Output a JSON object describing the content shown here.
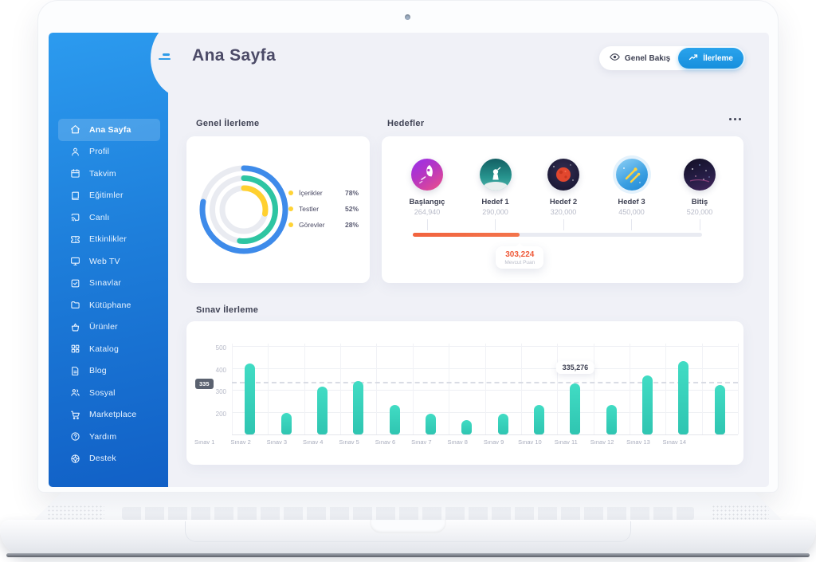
{
  "header": {
    "title": "Ana Sayfa"
  },
  "topbar": {
    "overview": "Genel Bakış",
    "progress": "İlerleme"
  },
  "sidebar": {
    "items": [
      {
        "icon": "home",
        "label": "Ana Sayfa",
        "active": true
      },
      {
        "icon": "user",
        "label": "Profil"
      },
      {
        "icon": "calendar",
        "label": "Takvim"
      },
      {
        "icon": "book",
        "label": "Eğitimler"
      },
      {
        "icon": "cast",
        "label": "Canlı"
      },
      {
        "icon": "ticket",
        "label": "Etkinlikler"
      },
      {
        "icon": "tv",
        "label": "Web TV"
      },
      {
        "icon": "check-square",
        "label": "Sınavlar"
      },
      {
        "icon": "folder",
        "label": "Kütüphane"
      },
      {
        "icon": "basket",
        "label": "Ürünler"
      },
      {
        "icon": "grid",
        "label": "Katalog"
      },
      {
        "icon": "file",
        "label": "Blog"
      },
      {
        "icon": "users",
        "label": "Sosyal"
      },
      {
        "icon": "cart",
        "label": "Marketplace"
      },
      {
        "icon": "help",
        "label": "Yardım"
      },
      {
        "icon": "support",
        "label": "Destek"
      }
    ]
  },
  "sections": {
    "general": "Genel İlerleme",
    "goals": "Hedefler",
    "exam": "Sınav İlerleme"
  },
  "goals": {
    "milestones": [
      {
        "label": "Başlangıç",
        "value": "264,940",
        "art": "rocket"
      },
      {
        "label": "Hedef 1",
        "value": "290,000",
        "art": "astronaut"
      },
      {
        "label": "Hedef 2",
        "value": "320,000",
        "art": "red-planet"
      },
      {
        "label": "Hedef 3",
        "value": "450,000",
        "art": "comets"
      },
      {
        "label": "Bitiş",
        "value": "520,000",
        "art": "night-sky"
      }
    ],
    "progress_percent": 37,
    "tooltip": {
      "value": "303,224",
      "caption": "Mevcut Puan"
    }
  },
  "chart_data": [
    {
      "type": "donut",
      "title": "Genel İlerleme",
      "series": [
        {
          "name": "İçerikler",
          "value": 78,
          "color": "#3E8BEA"
        },
        {
          "name": "Testler",
          "value": 52,
          "color": "#2EC5A2"
        },
        {
          "name": "Görevler",
          "value": 28,
          "color": "#FFD02F"
        }
      ],
      "legend_dot_color": "#FFD335",
      "legend_position": "right"
    },
    {
      "type": "bar",
      "title": "Sınav İlerleme",
      "categories": [
        "Sınav 1",
        "Sınav 2",
        "Sınav 3",
        "Sınav 4",
        "Sınav 5",
        "Sınav 6",
        "Sınav 7",
        "Sınav 8",
        "Sınav 9",
        "Sınav 10",
        "Sınav 11",
        "Sınav 12",
        "Sınav 13",
        "Sınav 14"
      ],
      "values": [
        425,
        200,
        320,
        345,
        235,
        195,
        165,
        195,
        235,
        335,
        235,
        370,
        435,
        325
      ],
      "ylim": [
        100,
        520
      ],
      "yticks": [
        200,
        300,
        400,
        500
      ],
      "marker_line": 335,
      "marker_label": "335",
      "annotation": {
        "index": 9,
        "label": "335,276"
      },
      "bar_color": "#38CDB7",
      "grid": true,
      "legend_position": "none"
    }
  ],
  "colors": {
    "sidebar_top": "#2C9BEF",
    "sidebar_bottom": "#1160C6",
    "accent_blue": "#1E96E8",
    "accent_orange": "#F2633E",
    "bar_teal": "#38CDB7"
  }
}
